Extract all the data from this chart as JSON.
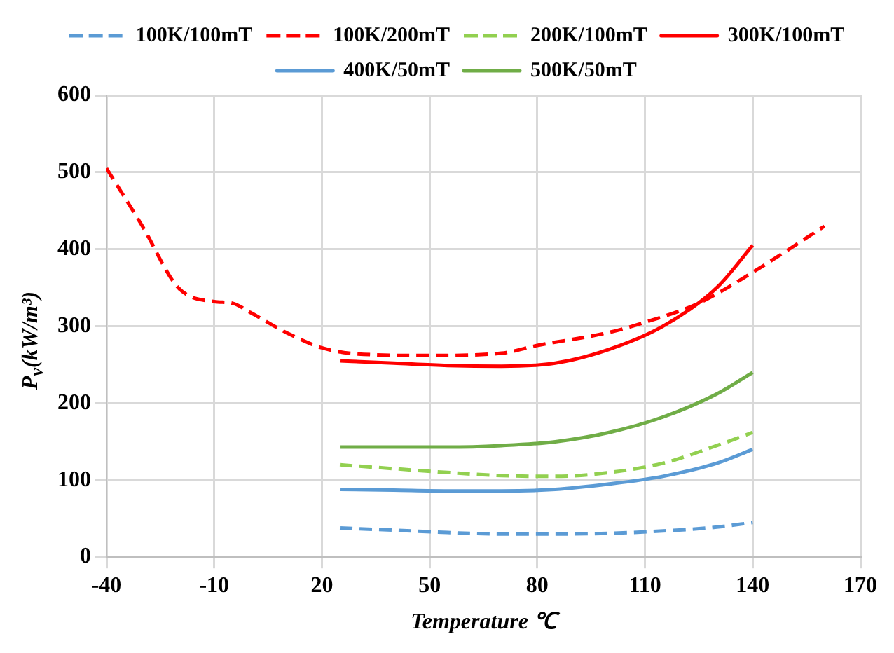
{
  "chart_data": {
    "type": "line",
    "xlabel": "Temperature ℃",
    "ylabel": "P$_{v}$(kW/m³)",
    "xlim": [
      -40,
      170
    ],
    "xticks": [
      -40,
      -10,
      20,
      50,
      80,
      110,
      140,
      170
    ],
    "ylim": [
      0,
      600
    ],
    "yticks": [
      0,
      100,
      200,
      300,
      400,
      500,
      600
    ],
    "grid": true,
    "legend": "top",
    "marker": "none",
    "series": [
      {
        "name": "100K/100mT",
        "color": "#5b9bd5",
        "line_style": "dashed",
        "x": [
          25,
          40,
          55,
          70,
          85,
          100,
          115,
          130,
          140
        ],
        "values": [
          38,
          35,
          32,
          30,
          30,
          31,
          34,
          39,
          45
        ]
      },
      {
        "name": "100K/200mT",
        "color": "#ff0000",
        "line_style": "dashed",
        "x": [
          -40,
          -30,
          -20,
          -10,
          -5,
          0,
          10,
          20,
          30,
          50,
          70,
          80,
          100,
          110,
          125,
          140,
          160
        ],
        "values": [
          505,
          430,
          350,
          332,
          330,
          318,
          292,
          272,
          264,
          262,
          265,
          275,
          292,
          305,
          330,
          370,
          430
        ]
      },
      {
        "name": "200K/100mT",
        "color": "#92d050",
        "line_style": "dashed",
        "x": [
          25,
          40,
          55,
          70,
          85,
          100,
          115,
          130,
          140
        ],
        "values": [
          120,
          115,
          110,
          106,
          105,
          110,
          122,
          145,
          162
        ]
      },
      {
        "name": "300K/100mT",
        "color": "#ff0000",
        "line_style": "solid",
        "x": [
          25,
          40,
          55,
          70,
          85,
          100,
          115,
          130,
          140
        ],
        "values": [
          255,
          252,
          249,
          248,
          252,
          270,
          300,
          350,
          405
        ]
      },
      {
        "name": "400K/50mT",
        "color": "#5b9bd5",
        "line_style": "solid",
        "x": [
          25,
          40,
          55,
          70,
          85,
          100,
          115,
          130,
          140
        ],
        "values": [
          88,
          87,
          86,
          86,
          88,
          95,
          105,
          122,
          140
        ]
      },
      {
        "name": "500K/50mT",
        "color": "#70ad47",
        "line_style": "solid",
        "x": [
          25,
          40,
          55,
          70,
          85,
          100,
          115,
          130,
          140
        ],
        "values": [
          143,
          143,
          143,
          145,
          150,
          162,
          182,
          212,
          240
        ]
      }
    ]
  }
}
